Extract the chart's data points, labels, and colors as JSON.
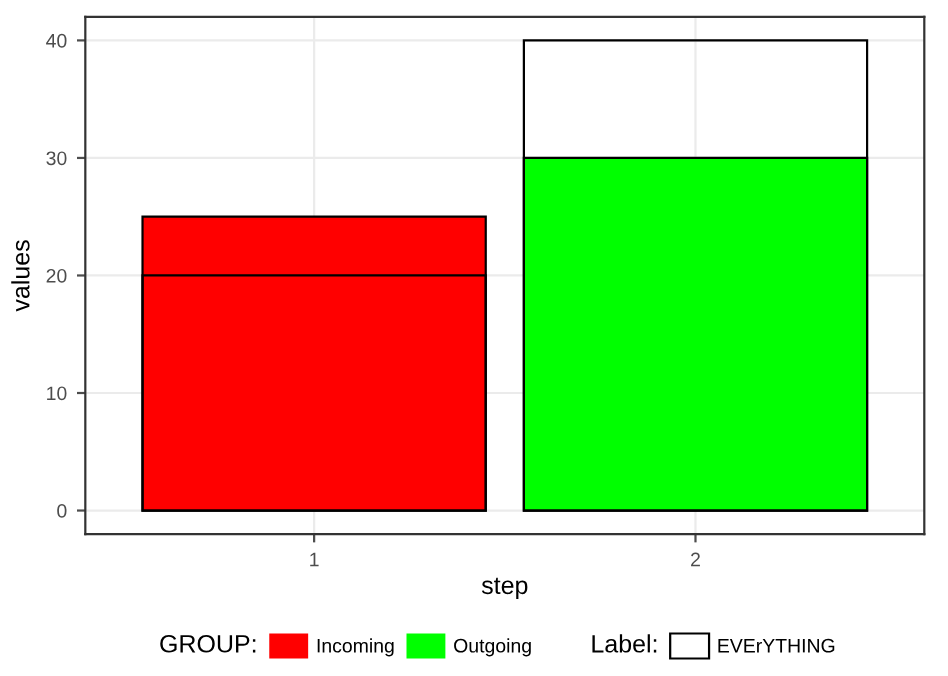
{
  "chart_data": {
    "type": "bar",
    "categories": [
      "1",
      "2"
    ],
    "series": [
      {
        "name": "Incoming",
        "color": "#ff0000",
        "values": [
          25,
          null
        ]
      },
      {
        "name": "Outgoing",
        "color": "#00ff00",
        "values": [
          null,
          30
        ]
      },
      {
        "name": "EVErYTHING",
        "color": null,
        "values": [
          20,
          40
        ]
      }
    ],
    "xlabel": "step",
    "ylabel": "values",
    "legend_title": [
      "GROUP:",
      "Label:"
    ],
    "ylim": [
      -2,
      42
    ],
    "yticks": [
      0,
      10,
      20,
      30,
      40
    ],
    "grid": true,
    "legend": "bottom"
  }
}
